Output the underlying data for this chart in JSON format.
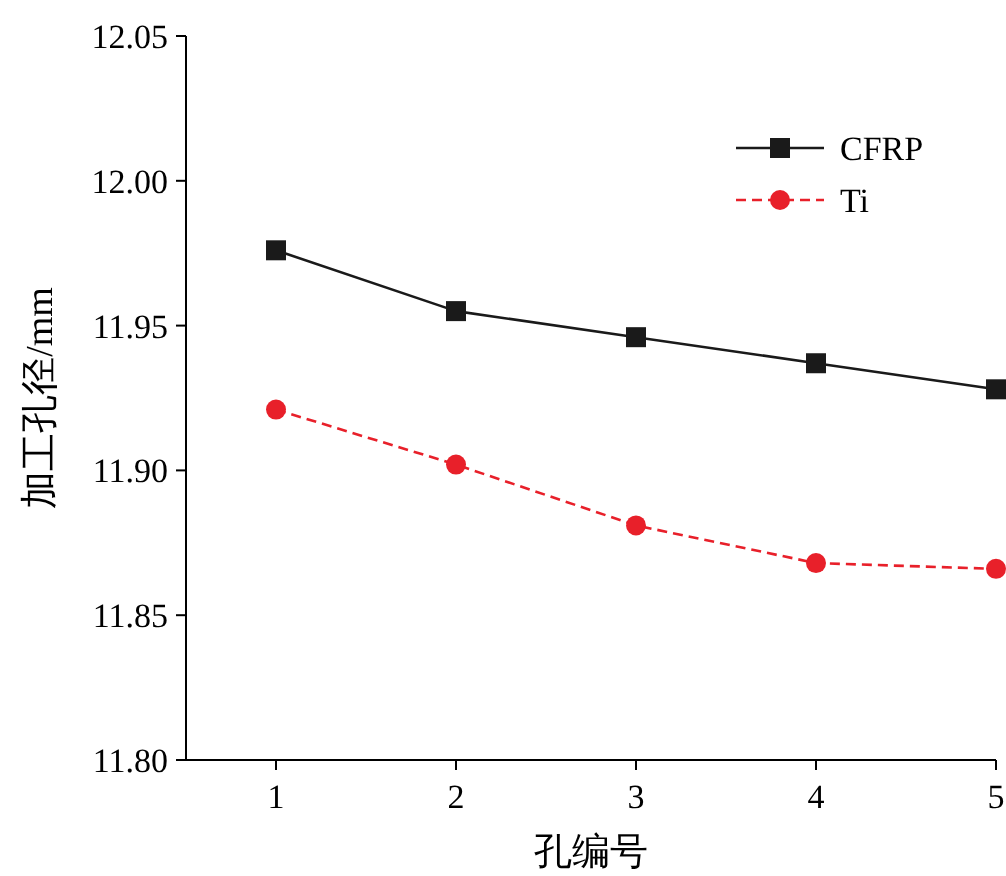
{
  "chart_data": {
    "type": "line",
    "xlabel": "孔编号",
    "ylabel": "加工孔径/mm",
    "x": [
      1,
      2,
      3,
      4,
      5
    ],
    "series": [
      {
        "name": "CFRP",
        "color": "#1a1a1a",
        "marker": "square",
        "line_style": "solid",
        "values": [
          11.976,
          11.955,
          11.946,
          11.937,
          11.928
        ]
      },
      {
        "name": "Ti",
        "color": "#e8202a",
        "marker": "circle",
        "line_style": "dashed",
        "values": [
          11.921,
          11.902,
          11.881,
          11.868,
          11.866
        ]
      }
    ],
    "xlim": [
      0.5,
      5
    ],
    "xticks": [
      1,
      2,
      3,
      4,
      5
    ],
    "ylim": [
      11.8,
      12.05
    ],
    "yticks": [
      {
        "value": 11.8,
        "label": "11.80"
      },
      {
        "value": 11.85,
        "label": "11.85"
      },
      {
        "value": 11.9,
        "label": "11.90"
      },
      {
        "value": 11.95,
        "label": "11.95"
      },
      {
        "value": 12.0,
        "label": "12.00"
      },
      {
        "value": 12.05,
        "label": "12.05"
      }
    ],
    "grid": false,
    "legend": "top right"
  }
}
